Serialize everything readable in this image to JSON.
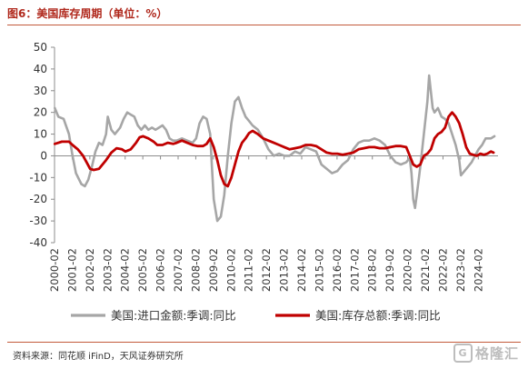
{
  "header": {
    "title": "图6：美国库存周期（单位：%）"
  },
  "footer": {
    "source": "资料来源：同花顺 iFinD，天风证券研究所",
    "watermark_icon": "G",
    "watermark_text": "格隆汇"
  },
  "chart_data": {
    "type": "line",
    "xlabel": "",
    "ylabel": "",
    "ylim": [
      -40,
      50
    ],
    "yticks": [
      -40,
      -30,
      -20,
      -10,
      0,
      10,
      20,
      30,
      40,
      50
    ],
    "xlim": [
      2000.083,
      2025.2
    ],
    "xticks": [
      "2000-02",
      "2001-02",
      "2002-02",
      "2003-02",
      "2004-02",
      "2005-02",
      "2006-02",
      "2007-02",
      "2008-02",
      "2009-02",
      "2010-02",
      "2011-02",
      "2012-02",
      "2013-02",
      "2014-02",
      "2015-02",
      "2016-02",
      "2017-02",
      "2018-02",
      "2019-02",
      "2020-02",
      "2021-02",
      "2022-02",
      "2023-02",
      "2024-02"
    ],
    "grid": false,
    "legend_position": "bottom",
    "series": [
      {
        "name": "美国:进口金额:季调:同比",
        "color": "#a6a6a6",
        "x": [
          2000.1,
          2000.3,
          2000.6,
          2000.9,
          2001.1,
          2001.3,
          2001.6,
          2001.8,
          2002.0,
          2002.2,
          2002.4,
          2002.6,
          2002.8,
          2003.0,
          2003.1,
          2003.3,
          2003.5,
          2003.8,
          2004.0,
          2004.2,
          2004.4,
          2004.6,
          2004.8,
          2005.0,
          2005.2,
          2005.4,
          2005.6,
          2005.8,
          2006.0,
          2006.2,
          2006.4,
          2006.6,
          2006.8,
          2007.0,
          2007.3,
          2007.6,
          2007.9,
          2008.1,
          2008.3,
          2008.5,
          2008.7,
          2008.9,
          2009.0,
          2009.1,
          2009.3,
          2009.5,
          2009.7,
          2009.9,
          2010.1,
          2010.3,
          2010.5,
          2010.7,
          2010.9,
          2011.1,
          2011.3,
          2011.6,
          2011.9,
          2012.2,
          2012.5,
          2012.8,
          2013.1,
          2013.4,
          2013.7,
          2014.0,
          2014.3,
          2014.6,
          2014.9,
          2015.2,
          2015.5,
          2015.8,
          2016.1,
          2016.4,
          2016.7,
          2017.0,
          2017.3,
          2017.6,
          2017.9,
          2018.2,
          2018.5,
          2018.8,
          2019.1,
          2019.4,
          2019.7,
          2020.0,
          2020.2,
          2020.3,
          2020.4,
          2020.5,
          2020.6,
          2020.8,
          2021.0,
          2021.2,
          2021.3,
          2021.5,
          2021.6,
          2021.8,
          2022.0,
          2022.2,
          2022.4,
          2022.6,
          2022.8,
          2023.0,
          2023.1,
          2023.3,
          2023.5,
          2023.7,
          2023.9,
          2024.1,
          2024.3,
          2024.5,
          2024.8,
          2025.0
        ],
        "y": [
          22,
          18,
          17,
          10,
          0,
          -8,
          -13,
          -14,
          -11,
          -5,
          2,
          6,
          5,
          10,
          18,
          12,
          10,
          13,
          17,
          20,
          19,
          18,
          14,
          12,
          14,
          12,
          13,
          12,
          13,
          14,
          12,
          8,
          7,
          7,
          8,
          7,
          6,
          8,
          15,
          18,
          17,
          10,
          -5,
          -20,
          -30,
          -28,
          -18,
          0,
          15,
          25,
          27,
          22,
          18,
          16,
          14,
          12,
          8,
          3,
          0,
          1,
          0,
          0,
          2,
          1,
          4,
          3,
          2,
          -4,
          -6,
          -8,
          -7,
          -4,
          -2,
          3,
          6,
          7,
          7,
          8,
          7,
          5,
          0,
          -3,
          -4,
          -3,
          -1,
          -8,
          -20,
          -24,
          -18,
          -5,
          10,
          25,
          37,
          22,
          20,
          22,
          18,
          17,
          15,
          10,
          5,
          -2,
          -9,
          -7,
          -5,
          -3,
          0,
          3,
          5,
          8,
          8,
          9
        ]
      },
      {
        "name": "美国:库存总额:季调:同比",
        "color": "#c00000",
        "x": [
          2000.1,
          2000.5,
          2000.9,
          2001.1,
          2001.4,
          2001.7,
          2001.9,
          2002.1,
          2002.3,
          2002.6,
          2002.8,
          2003.0,
          2003.3,
          2003.6,
          2003.9,
          2004.1,
          2004.4,
          2004.7,
          2004.9,
          2005.1,
          2005.4,
          2005.7,
          2005.9,
          2006.2,
          2006.5,
          2006.8,
          2007.0,
          2007.3,
          2007.6,
          2007.9,
          2008.2,
          2008.5,
          2008.7,
          2008.9,
          2009.1,
          2009.3,
          2009.5,
          2009.7,
          2009.9,
          2010.1,
          2010.3,
          2010.5,
          2010.7,
          2010.9,
          2011.1,
          2011.3,
          2011.6,
          2011.9,
          2012.2,
          2012.5,
          2012.8,
          2013.1,
          2013.4,
          2013.7,
          2014.0,
          2014.3,
          2014.6,
          2014.9,
          2015.2,
          2015.5,
          2015.8,
          2016.1,
          2016.4,
          2016.7,
          2017.0,
          2017.3,
          2017.6,
          2017.9,
          2018.2,
          2018.5,
          2018.8,
          2019.1,
          2019.4,
          2019.7,
          2020.0,
          2020.2,
          2020.4,
          2020.6,
          2020.8,
          2021.0,
          2021.2,
          2021.4,
          2021.6,
          2021.8,
          2022.0,
          2022.2,
          2022.4,
          2022.6,
          2022.8,
          2023.0,
          2023.2,
          2023.4,
          2023.6,
          2023.8,
          2024.0,
          2024.2,
          2024.4,
          2024.6,
          2024.8,
          2024.95
        ],
        "y": [
          5.5,
          6.5,
          6.5,
          5,
          3,
          0,
          -3,
          -6,
          -6.5,
          -6,
          -4,
          -2,
          1.5,
          3.5,
          3,
          2,
          3,
          6,
          8.5,
          9,
          8,
          6.5,
          5,
          5,
          6,
          5.5,
          6,
          7,
          6,
          5,
          4.5,
          4.5,
          5.5,
          8,
          4,
          -2,
          -9,
          -13,
          -14,
          -10,
          -4,
          2,
          6,
          8,
          10.5,
          11.5,
          10,
          8,
          7,
          6,
          5,
          4,
          3,
          3.5,
          4,
          5,
          5,
          4.5,
          3,
          1.5,
          1,
          1,
          0.5,
          1,
          1.5,
          3,
          3.5,
          4,
          4,
          3.5,
          3.5,
          4,
          4.5,
          4.5,
          4,
          0,
          -4,
          -5,
          -4,
          0,
          1,
          3,
          8,
          10,
          11,
          13,
          18,
          20,
          18,
          15,
          10,
          4,
          1,
          0.5,
          0,
          1,
          0.5,
          1,
          2,
          1.5
        ]
      }
    ]
  }
}
